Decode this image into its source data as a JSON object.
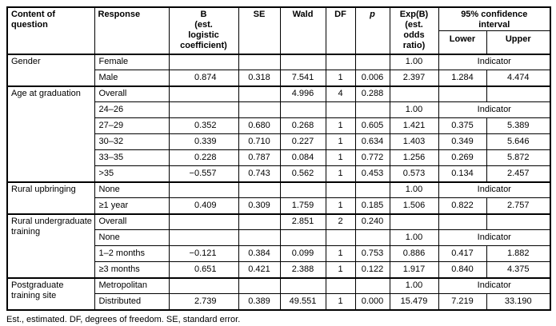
{
  "columns": {
    "content": "Content of\nquestion",
    "response": "Response",
    "b": "B\n(est.\nlogistic\ncoefficient)",
    "se": "SE",
    "wald": "Wald",
    "df": "DF",
    "p": "p",
    "exp_b": "Exp(B)\n(est.\nodds\nratio)",
    "ci": "95% confidence\ninterval",
    "lower": "Lower",
    "upper": "Upper"
  },
  "indicator_label": "Indicator",
  "groups": [
    {
      "content": "Gender",
      "rows": [
        {
          "response": "Female",
          "exp_b": "1.00",
          "indicator": "Indicator"
        },
        {
          "response": "Male",
          "b": "0.874",
          "se": "0.318",
          "wald": "7.541",
          "df": "1",
          "p": "0.006",
          "exp_b": "2.397",
          "lower": "1.284",
          "upper": "4.474"
        }
      ]
    },
    {
      "content": "Age at graduation",
      "rows": [
        {
          "response": "Overall",
          "wald": "4.996",
          "df": "4",
          "p": "0.288"
        },
        {
          "response": "24–26",
          "exp_b": "1.00",
          "indicator": "Indicator"
        },
        {
          "response": "27–29",
          "b": "0.352",
          "se": "0.680",
          "wald": "0.268",
          "df": "1",
          "p": "0.605",
          "exp_b": "1.421",
          "lower": "0.375",
          "upper": "5.389"
        },
        {
          "response": "30–32",
          "b": "0.339",
          "se": "0.710",
          "wald": "0.227",
          "df": "1",
          "p": "0.634",
          "exp_b": "1.403",
          "lower": "0.349",
          "upper": "5.646"
        },
        {
          "response": "33–35",
          "b": "0.228",
          "se": "0.787",
          "wald": "0.084",
          "df": "1",
          "p": "0.772",
          "exp_b": "1.256",
          "lower": "0.269",
          "upper": "5.872"
        },
        {
          "response": ">35",
          "b": "−0.557",
          "se": "0.743",
          "wald": "0.562",
          "df": "1",
          "p": "0.453",
          "exp_b": "0.573",
          "lower": "0.134",
          "upper": "2.457"
        }
      ]
    },
    {
      "content": "Rural upbringing",
      "rows": [
        {
          "response": "None",
          "exp_b": "1.00",
          "indicator": "Indicator"
        },
        {
          "response": "≥1 year",
          "b": "0.409",
          "se": "0.309",
          "wald": "1.759",
          "df": "1",
          "p": "0.185",
          "exp_b": "1.506",
          "lower": "0.822",
          "upper": "2.757"
        }
      ]
    },
    {
      "content": "Rural undergraduate training",
      "rows": [
        {
          "response": "Overall",
          "wald": "2.851",
          "df": "2",
          "p": "0.240"
        },
        {
          "response": "None",
          "exp_b": "1.00",
          "indicator": "Indicator"
        },
        {
          "response": "1–2 months",
          "b": "−0.121",
          "se": "0.384",
          "wald": "0.099",
          "df": "1",
          "p": "0.753",
          "exp_b": "0.886",
          "lower": "0.417",
          "upper": "1.882"
        },
        {
          "response": "≥3 months",
          "b": "0.651",
          "se": "0.421",
          "wald": "2.388",
          "df": "1",
          "p": "0.122",
          "exp_b": "1.917",
          "lower": "0.840",
          "upper": "4.375"
        }
      ]
    },
    {
      "content": "Postgraduate training site",
      "rows": [
        {
          "response": "Metropolitan",
          "exp_b": "1.00",
          "indicator": "Indicator"
        },
        {
          "response": "Distributed",
          "b": "2.739",
          "se": "0.389",
          "wald": "49.551",
          "df": "1",
          "p": "0.000",
          "exp_b": "15.479",
          "lower": "7.219",
          "upper": "33.190"
        }
      ]
    }
  ],
  "footnote": "Est., estimated. DF, degrees of freedom. SE, standard error.",
  "colors": {
    "border": "#000000",
    "text": "#000000",
    "background": "#ffffff"
  }
}
